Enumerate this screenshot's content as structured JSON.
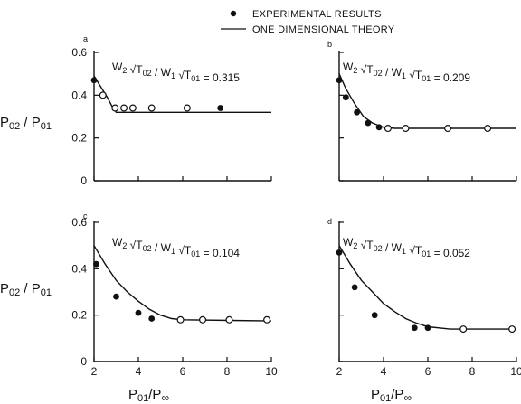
{
  "legend": {
    "experimental": "EXPERIMENTAL RESULTS",
    "theory": "ONE DIMENSIONAL THEORY"
  },
  "axis_labels": {
    "ylabel_main": "P",
    "ylabel_sub1": "02",
    "ylabel_mid": " / P",
    "ylabel_sub2": "01",
    "xlabel_main": "P",
    "xlabel_sub1": "01",
    "xlabel_mid": "/P",
    "xlabel_sub2": "∞"
  },
  "formula": {
    "w2": "W",
    "w2_sub": "2",
    "t02": "T",
    "t02_sub": "02",
    "slash": " / ",
    "w1": "W",
    "w1_sub": "1",
    "t01": "T",
    "t01_sub": "01",
    "eq": "="
  },
  "chart_data": [
    {
      "type": "scatter",
      "panel": "a",
      "ratio_value": "0.315",
      "xlim": [
        2,
        10
      ],
      "ylim": [
        0,
        0.6
      ],
      "x_ticks": [],
      "y_ticks": [
        "0",
        "0.2",
        "0.4",
        "0.6"
      ],
      "show_y_tick_labels": true,
      "show_x_tick_labels": false,
      "theory": [
        [
          2.0,
          0.49
        ],
        [
          2.3,
          0.44
        ],
        [
          2.6,
          0.39
        ],
        [
          2.85,
          0.34
        ],
        [
          3.0,
          0.32
        ],
        [
          10,
          0.32
        ]
      ],
      "experimental_filled": [
        [
          2.0,
          0.47
        ],
        [
          7.7,
          0.34
        ]
      ],
      "experimental_open": [
        [
          2.4,
          0.4
        ],
        [
          2.95,
          0.34
        ],
        [
          3.35,
          0.34
        ],
        [
          3.75,
          0.34
        ],
        [
          4.6,
          0.34
        ],
        [
          6.2,
          0.34
        ]
      ]
    },
    {
      "type": "scatter",
      "panel": "b",
      "ratio_value": "0.209",
      "xlim": [
        2,
        10
      ],
      "ylim": [
        0,
        0.6
      ],
      "x_ticks": [],
      "y_ticks": [],
      "show_y_tick_labels": false,
      "show_x_tick_labels": false,
      "theory": [
        [
          2.0,
          0.5
        ],
        [
          2.3,
          0.43
        ],
        [
          2.7,
          0.36
        ],
        [
          3.1,
          0.3
        ],
        [
          3.5,
          0.27
        ],
        [
          4.0,
          0.25
        ],
        [
          4.5,
          0.245
        ],
        [
          10,
          0.245
        ]
      ],
      "experimental_filled": [
        [
          2.0,
          0.47
        ],
        [
          2.3,
          0.39
        ],
        [
          2.8,
          0.32
        ],
        [
          3.3,
          0.27
        ],
        [
          3.8,
          0.25
        ]
      ],
      "experimental_open": [
        [
          4.2,
          0.245
        ],
        [
          5.0,
          0.245
        ],
        [
          6.9,
          0.245
        ],
        [
          8.7,
          0.245
        ]
      ]
    },
    {
      "type": "scatter",
      "panel": "c",
      "ratio_value": "0.104",
      "xlim": [
        2,
        10
      ],
      "ylim": [
        0,
        0.6
      ],
      "x_ticks": [
        "2",
        "4",
        "6",
        "8",
        "10"
      ],
      "y_ticks": [
        "0",
        "0.2",
        "0.4",
        "0.6"
      ],
      "show_y_tick_labels": true,
      "show_x_tick_labels": true,
      "theory": [
        [
          2.0,
          0.5
        ],
        [
          2.5,
          0.42
        ],
        [
          3.0,
          0.35
        ],
        [
          3.5,
          0.3
        ],
        [
          4.0,
          0.26
        ],
        [
          4.5,
          0.225
        ],
        [
          5.0,
          0.2
        ],
        [
          5.5,
          0.185
        ],
        [
          6.0,
          0.18
        ],
        [
          10,
          0.175
        ]
      ],
      "experimental_filled": [
        [
          2.1,
          0.42
        ],
        [
          3.0,
          0.28
        ],
        [
          4.0,
          0.21
        ],
        [
          4.6,
          0.185
        ]
      ],
      "experimental_open": [
        [
          5.9,
          0.18
        ],
        [
          6.9,
          0.18
        ],
        [
          8.1,
          0.18
        ],
        [
          9.8,
          0.18
        ]
      ]
    },
    {
      "type": "scatter",
      "panel": "d",
      "ratio_value": "0.052",
      "xlim": [
        2,
        10
      ],
      "ylim": [
        0,
        0.6
      ],
      "x_ticks": [
        "2",
        "4",
        "6",
        "8",
        "10"
      ],
      "y_ticks": [],
      "show_y_tick_labels": false,
      "show_x_tick_labels": true,
      "theory": [
        [
          2.0,
          0.5
        ],
        [
          2.5,
          0.42
        ],
        [
          3.0,
          0.35
        ],
        [
          3.5,
          0.3
        ],
        [
          4.0,
          0.25
        ],
        [
          4.5,
          0.215
        ],
        [
          5.0,
          0.185
        ],
        [
          5.5,
          0.165
        ],
        [
          6.0,
          0.15
        ],
        [
          7.0,
          0.14
        ],
        [
          10,
          0.14
        ]
      ],
      "experimental_filled": [
        [
          2.0,
          0.47
        ],
        [
          2.7,
          0.32
        ],
        [
          3.6,
          0.2
        ],
        [
          5.4,
          0.145
        ],
        [
          6.0,
          0.145
        ]
      ],
      "experimental_open": [
        [
          7.6,
          0.14
        ],
        [
          9.8,
          0.14
        ]
      ]
    }
  ]
}
